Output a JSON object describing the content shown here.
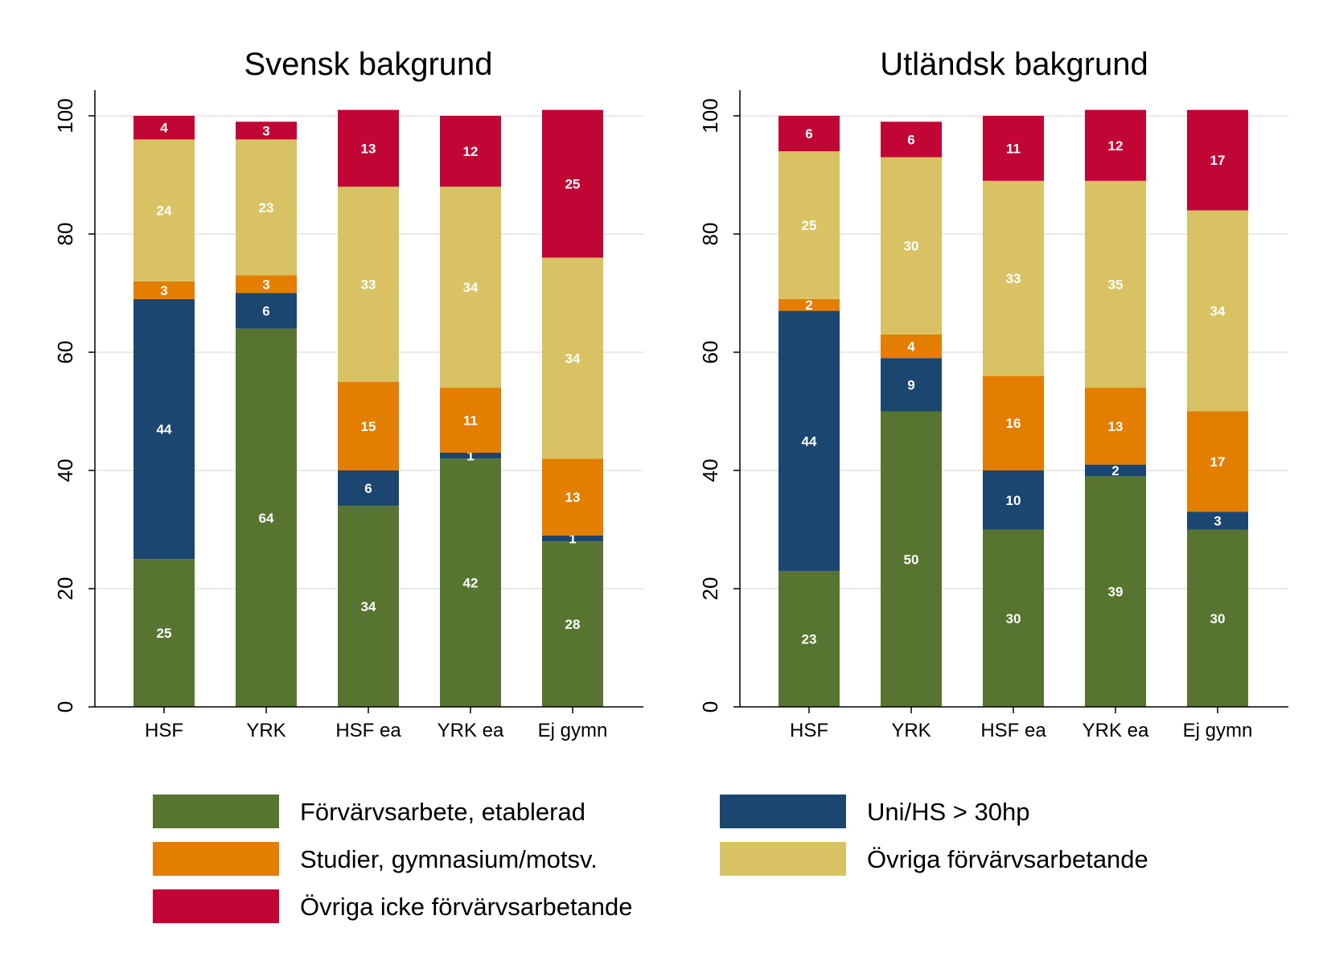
{
  "chart_data": [
    {
      "type": "bar",
      "stacked": true,
      "title": "Svensk bakgrund",
      "xlabel": "",
      "ylabel": "",
      "ylim": [
        0,
        100
      ],
      "yticks": [
        "0",
        "20",
        "40",
        "60",
        "80",
        "100"
      ],
      "grid": true,
      "categories": [
        "HSF",
        "YRK",
        "HSF ea",
        "YRK ea",
        "Ej gymn"
      ],
      "series": [
        {
          "name": "Förvärvsarbete, etablerad",
          "color": "#577530",
          "values": [
            25,
            64,
            34,
            42,
            28
          ]
        },
        {
          "name": "Uni/HS > 30hp",
          "color": "#1b4670",
          "values": [
            44,
            6,
            6,
            1,
            1
          ]
        },
        {
          "name": "Studier, gymnasium/motsv.",
          "color": "#e37e00",
          "values": [
            3,
            3,
            15,
            11,
            13
          ]
        },
        {
          "name": "Övriga förvärvsarbetande",
          "color": "#d8c263",
          "values": [
            24,
            23,
            33,
            34,
            34
          ]
        },
        {
          "name": "Övriga icke förvärvsarbetande",
          "color": "#c10534",
          "values": [
            4,
            3,
            13,
            12,
            25
          ]
        }
      ]
    },
    {
      "type": "bar",
      "stacked": true,
      "title": "Utländsk bakgrund",
      "xlabel": "",
      "ylabel": "",
      "ylim": [
        0,
        100
      ],
      "yticks": [
        "0",
        "20",
        "40",
        "60",
        "80",
        "100"
      ],
      "grid": true,
      "categories": [
        "HSF",
        "YRK",
        "HSF ea",
        "YRK ea",
        "Ej gymn"
      ],
      "series": [
        {
          "name": "Förvärvsarbete, etablerad",
          "color": "#577530",
          "values": [
            23,
            50,
            30,
            39,
            30
          ]
        },
        {
          "name": "Uni/HS > 30hp",
          "color": "#1b4670",
          "values": [
            44,
            9,
            10,
            2,
            3
          ]
        },
        {
          "name": "Studier, gymnasium/motsv.",
          "color": "#e37e00",
          "values": [
            2,
            4,
            16,
            13,
            17
          ]
        },
        {
          "name": "Övriga förvärvsarbetande",
          "color": "#d8c263",
          "values": [
            25,
            30,
            33,
            35,
            34
          ]
        },
        {
          "name": "Övriga icke förvärvsarbetande",
          "color": "#c10534",
          "values": [
            6,
            6,
            11,
            12,
            17
          ]
        }
      ]
    }
  ],
  "legend": {
    "placement": "bottom",
    "items": [
      {
        "label": "Förvärvsarbete, etablerad",
        "color": "#577530"
      },
      {
        "label": "Uni/HS > 30hp",
        "color": "#1b4670"
      },
      {
        "label": "Studier, gymnasium/motsv.",
        "color": "#e37e00"
      },
      {
        "label": "Övriga förvärvsarbetande",
        "color": "#d8c263"
      },
      {
        "label": "Övriga icke förvärvsarbetande",
        "color": "#c10534"
      }
    ]
  }
}
